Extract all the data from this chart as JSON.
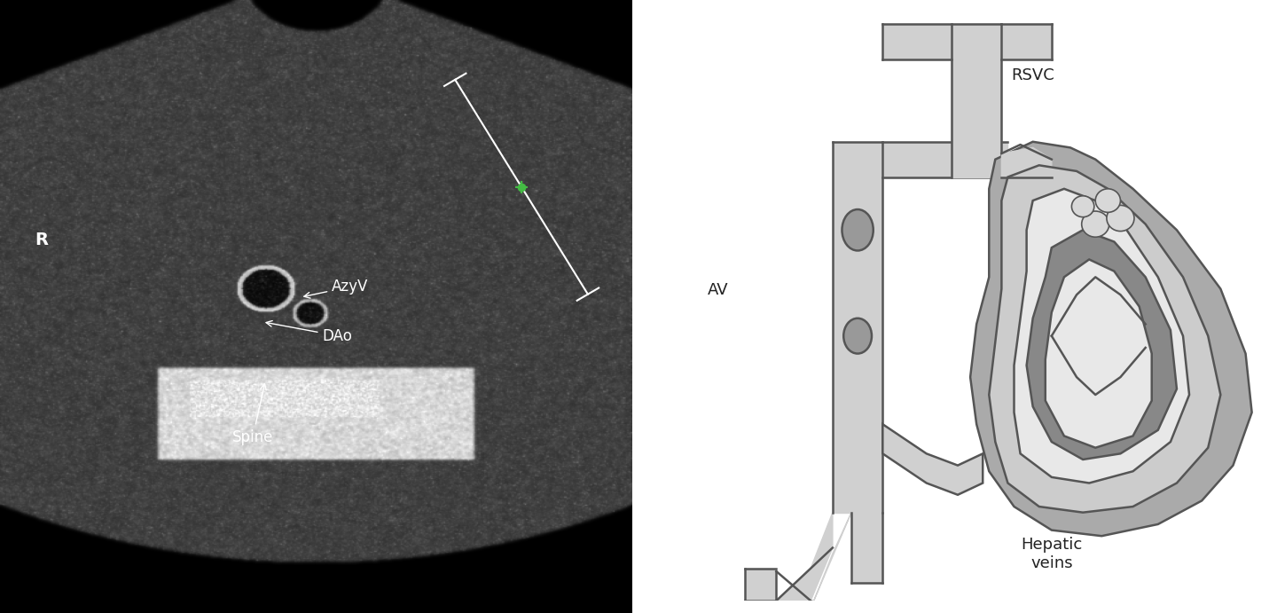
{
  "vessel_fill": "#d0d0d0",
  "vessel_outline": "#555555",
  "vessel_lw": 1.8,
  "heart_outer_fill": "#aaaaaa",
  "heart_mid_fill": "#cccccc",
  "heart_inner_fill": "#e8e8e8",
  "heart_dark_fill": "#888888",
  "node_fill": "#999999",
  "label_RSVC": "RSVC",
  "label_AV": "AV",
  "label_Hepatic": "Hepatic\nveins",
  "label_fontsize": 13,
  "label_color": "#222222",
  "us_bg": "#000000",
  "label_R_text": "R",
  "label_DAo_text": "DAo",
  "label_AzyV_text": "AzyV",
  "label_Spine_text": "Spine",
  "us_label_color": "white",
  "us_label_fontsize": 12
}
